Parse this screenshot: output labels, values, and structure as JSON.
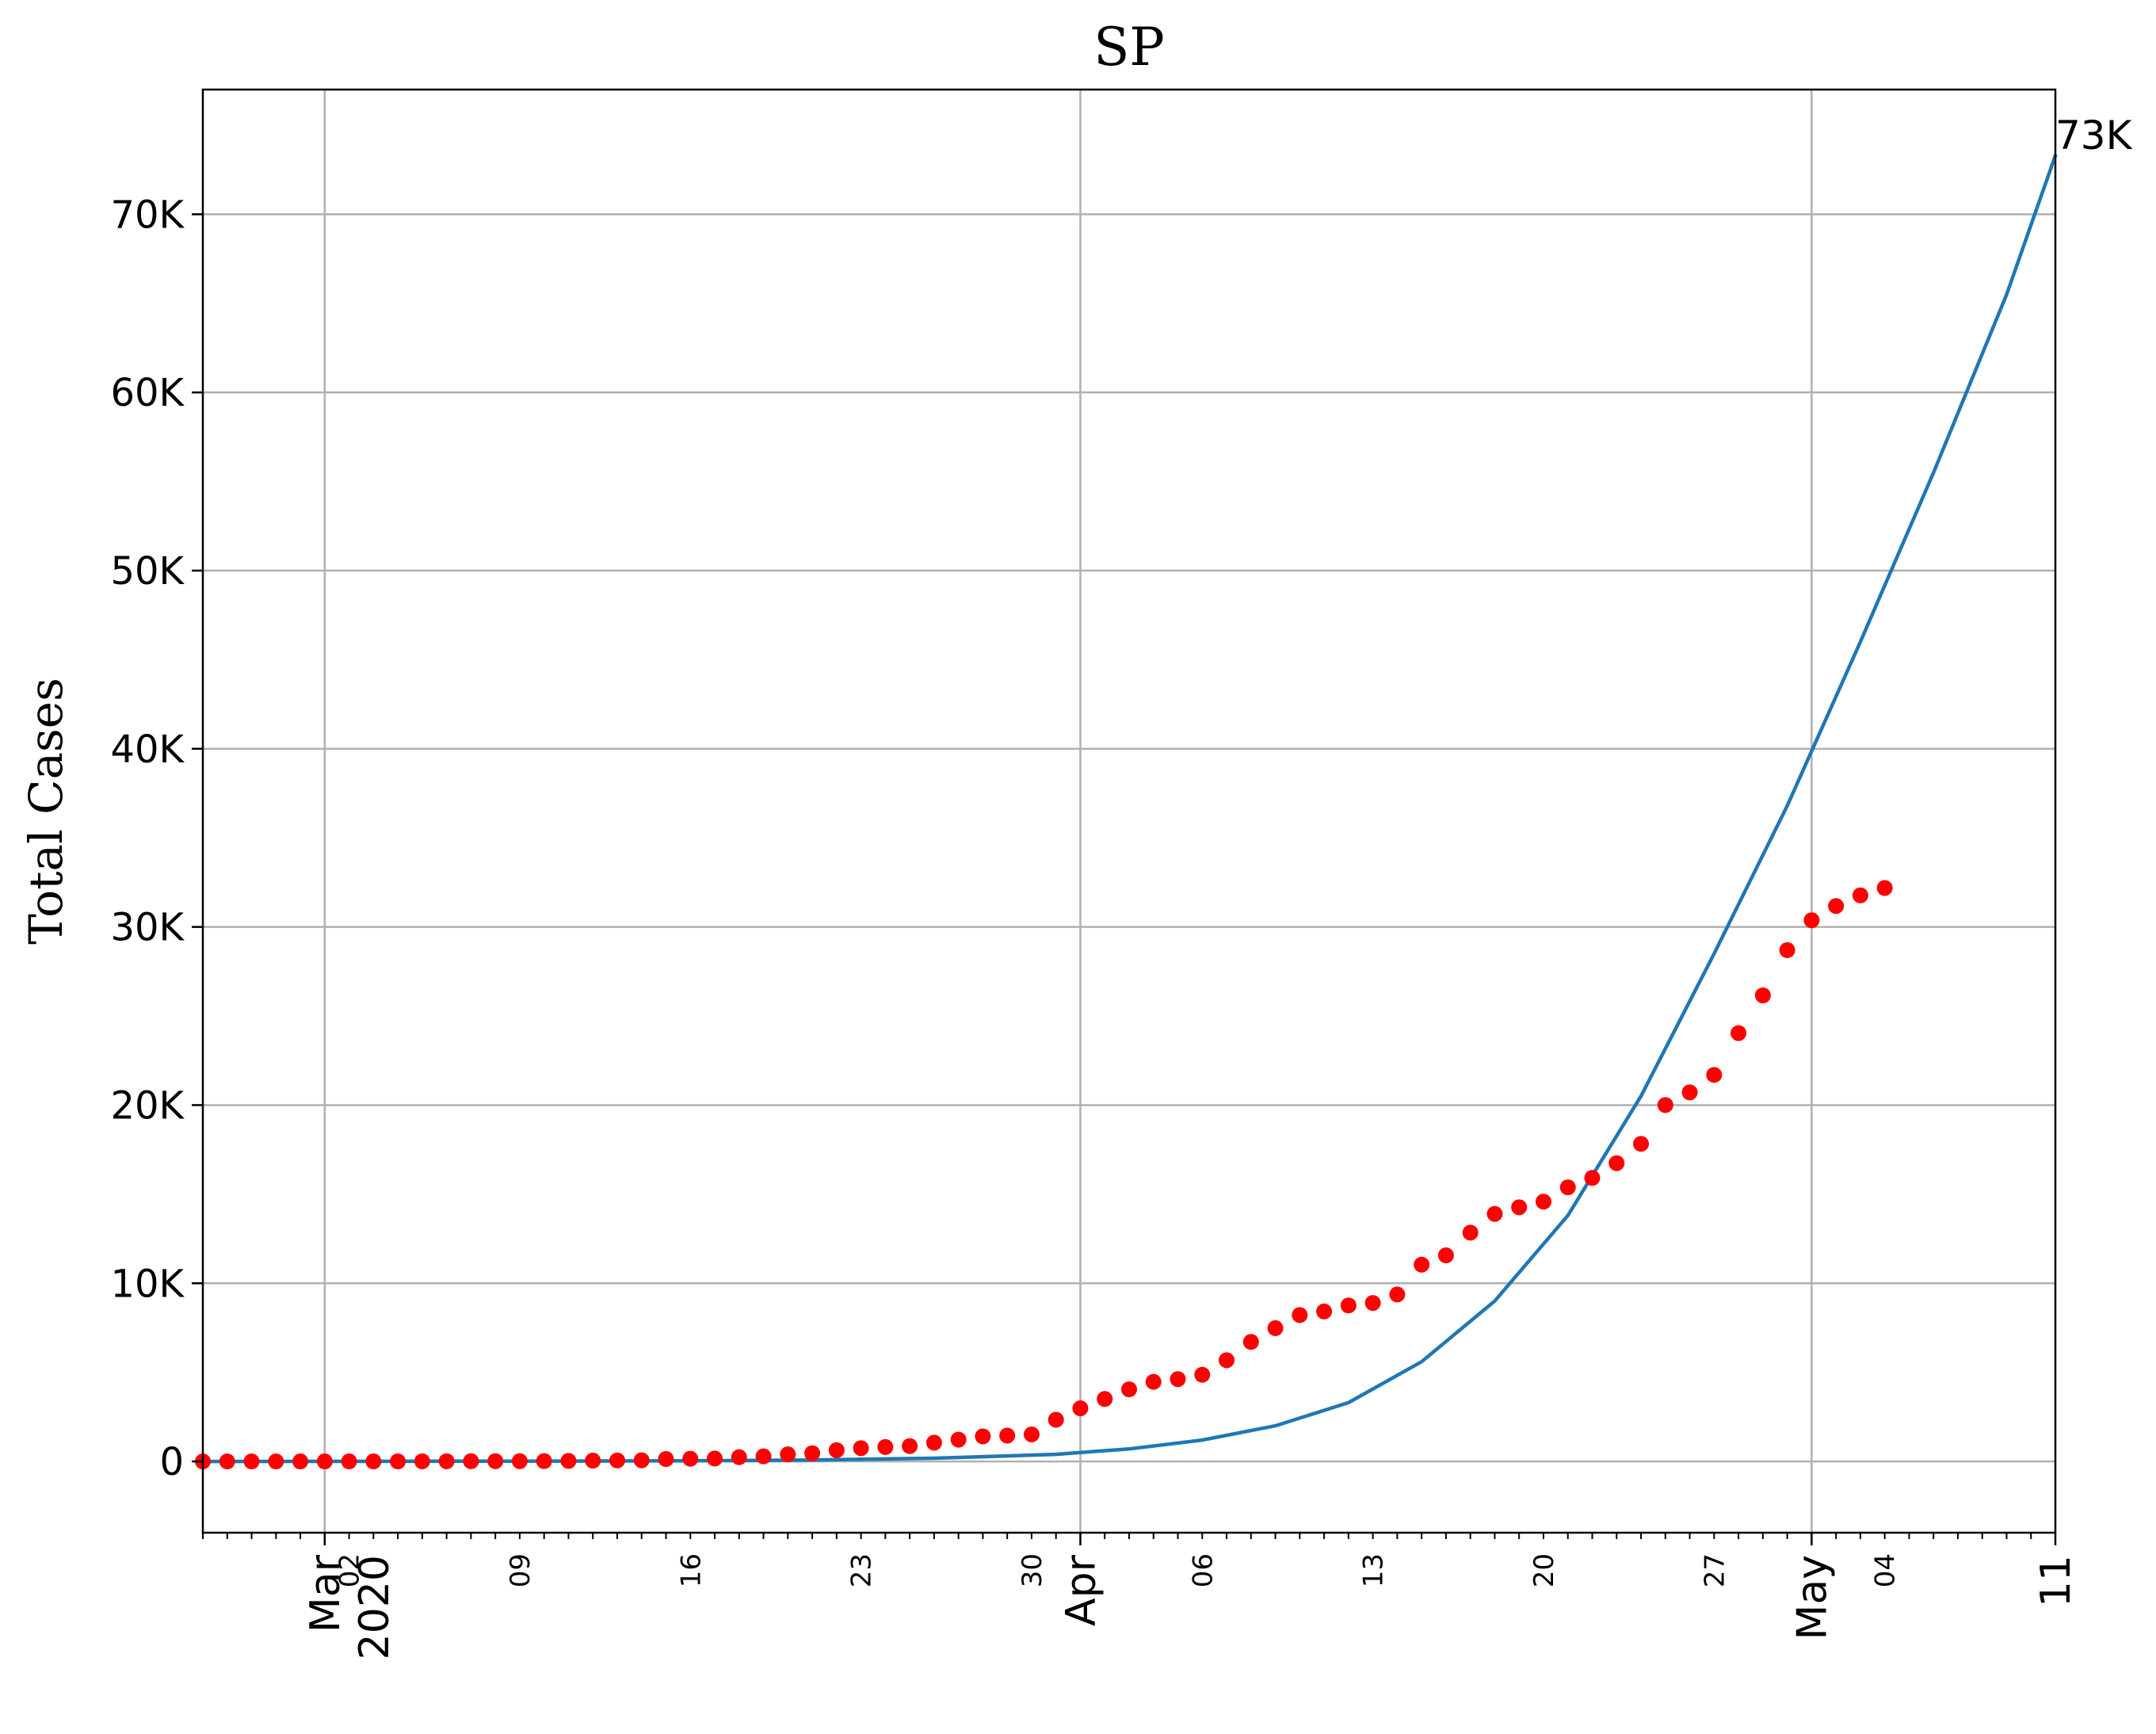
{
  "chart_data": {
    "type": "line",
    "title": "SP",
    "xlabel": "",
    "ylabel": "Total Cases",
    "x_axis_type": "date",
    "xlim": [
      "2020-02-25",
      "2020-05-11"
    ],
    "ylim": [
      -4000,
      77000
    ],
    "grid": true,
    "yticks": [
      {
        "value": 0,
        "label": "0"
      },
      {
        "value": 10000,
        "label": "10K"
      },
      {
        "value": 20000,
        "label": "20K"
      },
      {
        "value": 30000,
        "label": "30K"
      },
      {
        "value": 40000,
        "label": "40K"
      },
      {
        "value": 50000,
        "label": "50K"
      },
      {
        "value": 60000,
        "label": "60K"
      },
      {
        "value": 70000,
        "label": "70K"
      }
    ],
    "xticks_major": [
      {
        "date": "2020-03-01",
        "label": "Mar",
        "label2": "2020"
      },
      {
        "date": "2020-04-01",
        "label": "Apr"
      },
      {
        "date": "2020-05-01",
        "label": "May"
      },
      {
        "date": "2020-05-11",
        "label": "11"
      }
    ],
    "xticks_minor": [
      {
        "date": "2020-03-02",
        "label": "02"
      },
      {
        "date": "2020-03-09",
        "label": "09"
      },
      {
        "date": "2020-03-16",
        "label": "16"
      },
      {
        "date": "2020-03-23",
        "label": "23"
      },
      {
        "date": "2020-03-30",
        "label": "30"
      },
      {
        "date": "2020-04-06",
        "label": "06"
      },
      {
        "date": "2020-04-13",
        "label": "13"
      },
      {
        "date": "2020-04-20",
        "label": "20"
      },
      {
        "date": "2020-04-27",
        "label": "27"
      },
      {
        "date": "2020-05-04",
        "label": "04"
      }
    ],
    "series": [
      {
        "style": "scatter",
        "color": "#ff0000",
        "x": [
          "2020-02-25",
          "2020-02-26",
          "2020-02-27",
          "2020-02-28",
          "2020-02-29",
          "2020-03-01",
          "2020-03-02",
          "2020-03-03",
          "2020-03-04",
          "2020-03-05",
          "2020-03-06",
          "2020-03-07",
          "2020-03-08",
          "2020-03-09",
          "2020-03-10",
          "2020-03-11",
          "2020-03-12",
          "2020-03-13",
          "2020-03-14",
          "2020-03-15",
          "2020-03-16",
          "2020-03-17",
          "2020-03-18",
          "2020-03-19",
          "2020-03-20",
          "2020-03-21",
          "2020-03-22",
          "2020-03-23",
          "2020-03-24",
          "2020-03-25",
          "2020-03-26",
          "2020-03-27",
          "2020-03-28",
          "2020-03-29",
          "2020-03-30",
          "2020-03-31",
          "2020-04-01",
          "2020-04-02",
          "2020-04-03",
          "2020-04-04",
          "2020-04-05",
          "2020-04-06",
          "2020-04-07",
          "2020-04-08",
          "2020-04-09",
          "2020-04-10",
          "2020-04-11",
          "2020-04-12",
          "2020-04-13",
          "2020-04-14",
          "2020-04-15",
          "2020-04-16",
          "2020-04-17",
          "2020-04-18",
          "2020-04-19",
          "2020-04-20",
          "2020-04-21",
          "2020-04-22",
          "2020-04-23",
          "2020-04-24",
          "2020-04-25",
          "2020-04-26",
          "2020-04-27",
          "2020-04-28",
          "2020-04-29",
          "2020-04-30",
          "2020-05-01",
          "2020-05-02",
          "2020-05-03",
          "2020-05-04"
        ],
        "y": [
          1,
          1,
          1,
          1,
          2,
          2,
          2,
          2,
          3,
          6,
          10,
          13,
          16,
          16,
          19,
          30,
          46,
          56,
          65,
          136,
          152,
          164,
          240,
          286,
          396,
          459,
          631,
          745,
          810,
          862,
          1052,
          1223,
          1406,
          1451,
          1517,
          2339,
          2981,
          3506,
          4048,
          4466,
          4620,
          4866,
          5682,
          6708,
          7480,
          8216,
          8419,
          8755,
          8895,
          9371,
          11043,
          11568,
          12841,
          13894,
          14267,
          14580,
          15385,
          15914,
          16740,
          17826,
          20004,
          20715,
          21696,
          24041,
          26158,
          28698,
          30374,
          31174,
          31772,
          32187
        ]
      },
      {
        "style": "line",
        "color": "#1f77b4",
        "x": [
          "2020-02-25",
          "2020-03-01",
          "2020-03-06",
          "2020-03-11",
          "2020-03-16",
          "2020-03-21",
          "2020-03-26",
          "2020-03-31",
          "2020-04-03",
          "2020-04-06",
          "2020-04-09",
          "2020-04-12",
          "2020-04-15",
          "2020-04-18",
          "2020-04-21",
          "2020-04-24",
          "2020-04-27",
          "2020-04-30",
          "2020-05-03",
          "2020-05-06",
          "2020-05-09",
          "2020-05-11"
        ],
        "y": [
          0,
          5,
          10,
          20,
          40,
          80,
          180,
          400,
          700,
          1200,
          2000,
          3300,
          5600,
          9000,
          13800,
          20500,
          28500,
          36800,
          46000,
          55500,
          65500,
          73300
        ]
      }
    ],
    "annotations": [
      {
        "text": "73K",
        "x": "2020-05-11",
        "y": 73300
      }
    ]
  }
}
